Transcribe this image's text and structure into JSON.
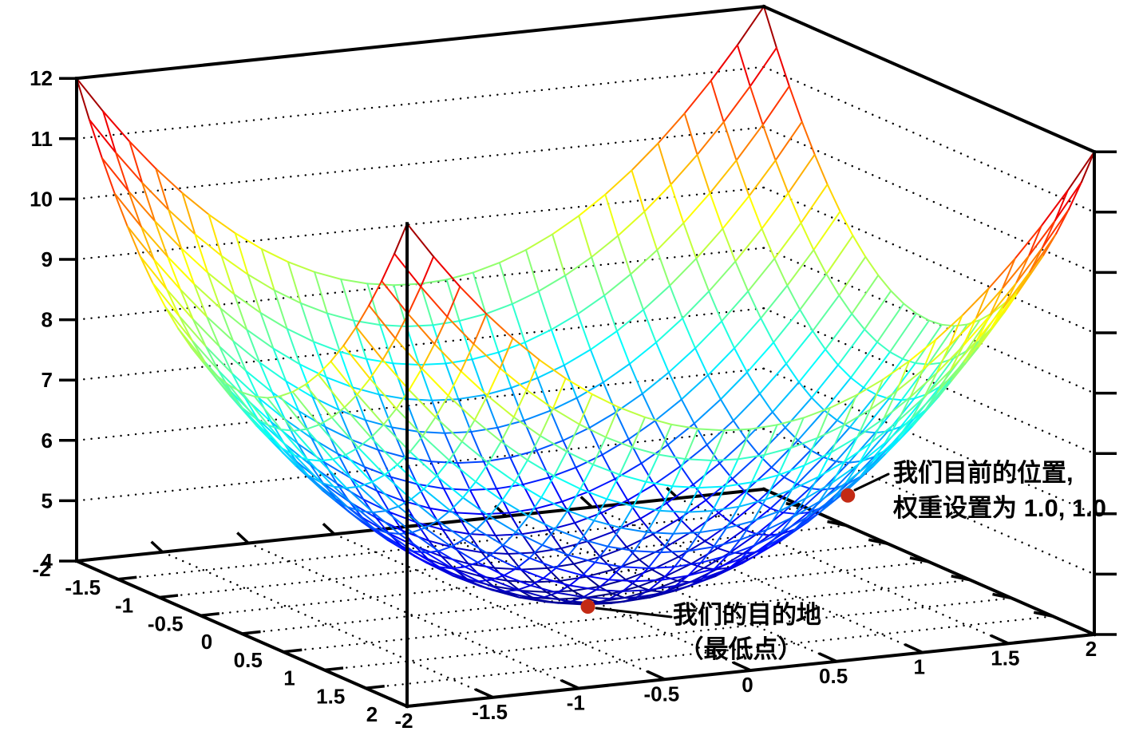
{
  "chart_data": {
    "type": "surface-wireframe-3d",
    "title": "",
    "z_formula": "z = x^2 + y^2 + 4",
    "x_range": [
      -2,
      2
    ],
    "y_range": [
      -2,
      2
    ],
    "z_range": [
      4,
      12
    ],
    "grid_divisions": 26,
    "colormap": "jet (dark blue → blue → cyan → green → yellow → orange → red → dark red)",
    "grid": true,
    "x_ticks": [
      "-2",
      "-1.5",
      "-1",
      "-0.5",
      "0",
      "0.5",
      "1",
      "1.5",
      "2"
    ],
    "y_ticks": [
      "-2",
      "-1.5",
      "-1",
      "-0.5",
      "0",
      "0.5",
      "1",
      "1.5",
      "2"
    ],
    "z_ticks": [
      "4",
      "5",
      "6",
      "7",
      "8",
      "9",
      "10",
      "11",
      "12"
    ],
    "markers": [
      {
        "x": 1.0,
        "y": 1.0,
        "z": 6.0,
        "label_line1": "我们目前的位置,",
        "label_line2": "权重设置为 1.0, 1.0"
      },
      {
        "x": 0.0,
        "y": 0.0,
        "z": 4.0,
        "label_line1": "我们的目的地",
        "label_line2": "（最低点）"
      }
    ]
  },
  "colors": {
    "marker": "#c32a14",
    "axis": "#000000",
    "grid_dots": "#000000",
    "background": "#ffffff"
  }
}
